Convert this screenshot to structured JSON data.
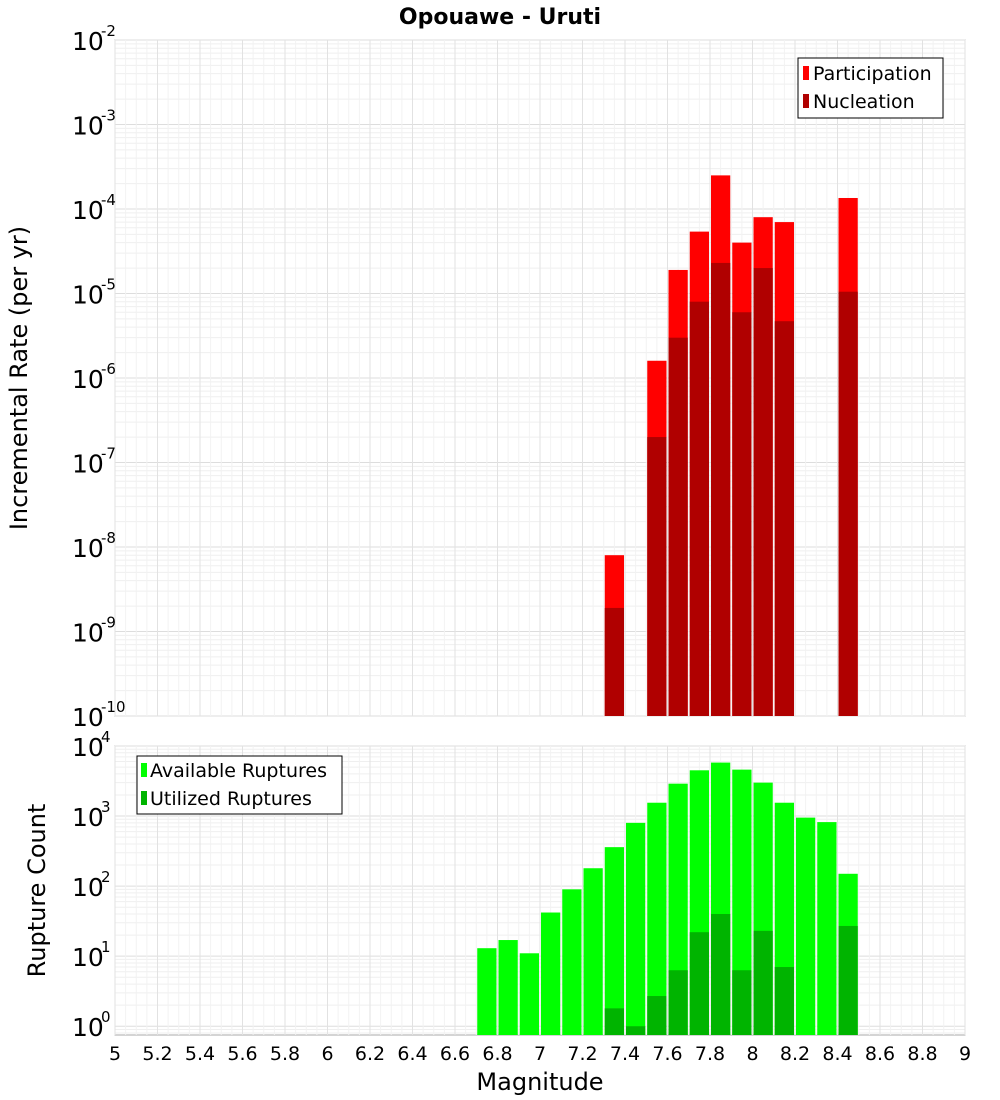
{
  "title": "Opouawe - Uruti",
  "chart_data": [
    {
      "type": "bar",
      "xlabel": "Magnitude",
      "ylabel": "Incremental Rate (per yr)",
      "xlim": [
        5,
        9
      ],
      "ylim": [
        1e-10,
        0.01
      ],
      "yscale": "log",
      "grid": true,
      "legend_position": "top-right",
      "x_ticks": [
        "5",
        "5.2",
        "5.4",
        "5.6",
        "5.8",
        "6",
        "6.2",
        "6.4",
        "6.6",
        "6.8",
        "7",
        "7.2",
        "7.4",
        "7.6",
        "7.8",
        "8",
        "8.2",
        "8.4",
        "8.6",
        "8.8",
        "9"
      ],
      "y_tick_exponents": [
        "-10",
        "-9",
        "-8",
        "-7",
        "-6",
        "-5",
        "-4",
        "-3",
        "-2"
      ],
      "x": [
        7.35,
        7.55,
        7.65,
        7.75,
        7.85,
        7.95,
        8.05,
        8.15,
        8.45
      ],
      "series": [
        {
          "name": "Participation",
          "color": "#ff0000",
          "values": [
            8e-09,
            1.6e-06,
            1.9e-05,
            5.4e-05,
            0.00025,
            4e-05,
            8e-05,
            7e-05,
            0.000135
          ]
        },
        {
          "name": "Nucleation",
          "color": "#b00000",
          "values": [
            1.9e-09,
            2e-07,
            3e-06,
            8e-06,
            2.3e-05,
            6e-06,
            2e-05,
            4.7e-06,
            1.05e-05
          ]
        }
      ]
    },
    {
      "type": "bar",
      "xlabel": "Magnitude",
      "ylabel": "Rupture Count",
      "xlim": [
        5,
        9
      ],
      "ylim": [
        0.75,
        10000
      ],
      "yscale": "log",
      "grid": true,
      "legend_position": "top-left",
      "y_tick_exponents": [
        "0",
        "1",
        "2",
        "3",
        "4"
      ],
      "x": [
        6.75,
        6.85,
        6.95,
        7.05,
        7.15,
        7.25,
        7.35,
        7.45,
        7.55,
        7.65,
        7.75,
        7.85,
        7.95,
        8.05,
        8.15,
        8.25,
        8.35,
        8.45
      ],
      "series": [
        {
          "name": "Available Ruptures",
          "color": "#00ff00",
          "values": [
            13,
            17,
            11,
            42,
            90,
            180,
            360,
            800,
            1550,
            2900,
            4500,
            5800,
            4600,
            3000,
            1550,
            950,
            820,
            150
          ]
        },
        {
          "name": "Utilized Ruptures",
          "color": "#00b400",
          "values": [
            0,
            0,
            0,
            0,
            0,
            0,
            1.8,
            1,
            2.7,
            6.3,
            22,
            40,
            6.3,
            23,
            7,
            0,
            0,
            27
          ]
        }
      ]
    }
  ]
}
